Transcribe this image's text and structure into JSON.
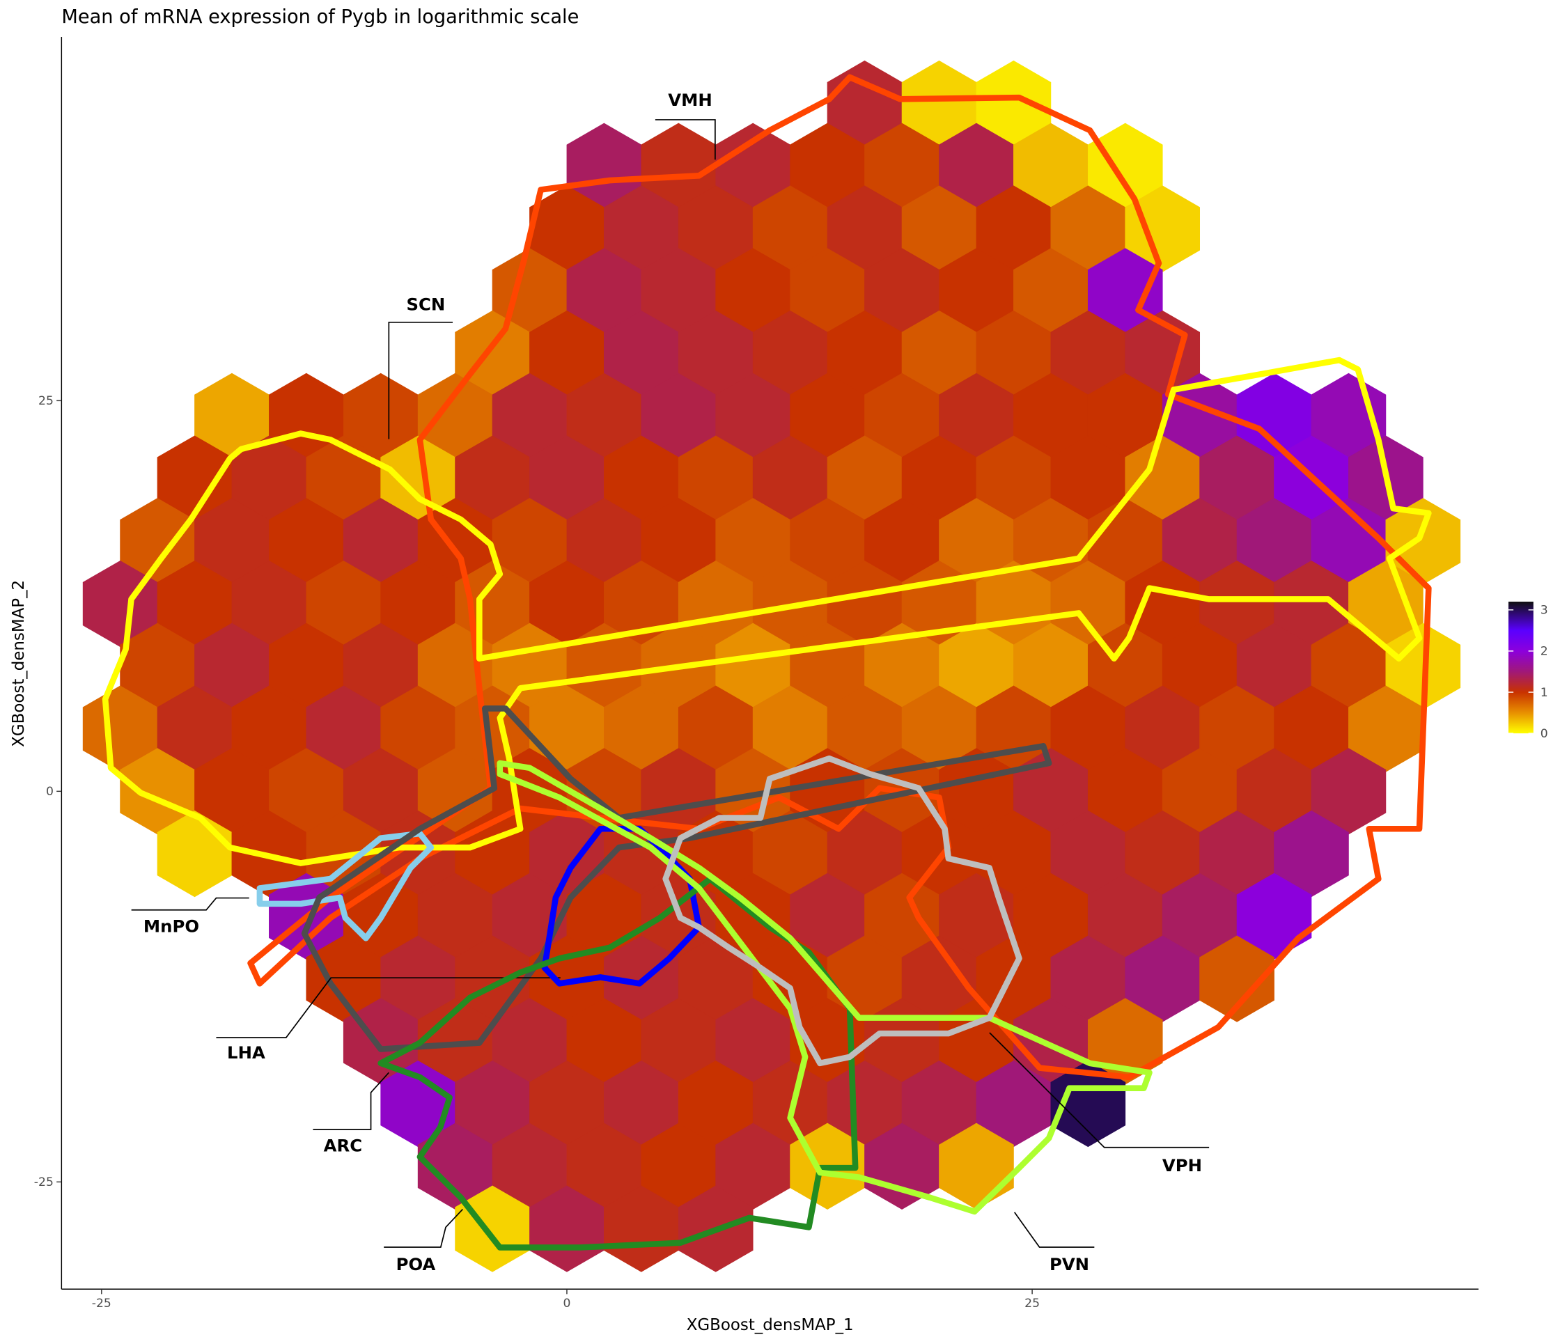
{
  "chart_data": {
    "type": "hexbin",
    "title": "Mean of mRNA expression of Pygb in logarithmic scale",
    "x_label": "XGBoost_densMAP_1",
    "y_label": "XGBoost_densMAP_2",
    "xlim": [
      -27.15,
      48.98
    ],
    "ylim": [
      -31.86,
      48.28
    ],
    "xticks": [
      -25,
      0,
      25
    ],
    "yticks": [
      -25,
      0,
      25
    ],
    "colorscale": {
      "values": [
        0,
        0.5,
        1,
        1.5,
        2,
        2.5,
        3.2
      ],
      "colors": [
        "#ffff00",
        "#e89000",
        "#c83200",
        "#a01878",
        "#8c00dc",
        "#5a00ff",
        "#101010"
      ],
      "lim": [
        0,
        3.2
      ],
      "ticks": [
        0,
        1,
        2,
        3
      ]
    },
    "rows": [
      {
        "y": 44,
        "x": [
          16,
          20,
          24
        ],
        "values": [
          1.2,
          0.2,
          0.1
        ]
      },
      {
        "y": 40,
        "x": [
          2,
          6,
          10,
          14,
          18,
          22,
          26,
          30
        ],
        "values": [
          1.4,
          1.1,
          1.2,
          1.0,
          0.9,
          1.3,
          0.3,
          0.1
        ]
      },
      {
        "y": 36,
        "x": [
          0,
          4,
          8,
          12,
          16,
          20,
          24,
          28,
          32
        ],
        "values": [
          1.0,
          1.2,
          1.1,
          0.9,
          1.1,
          0.8,
          1.0,
          0.7,
          0.2
        ]
      },
      {
        "y": 32,
        "x": [
          -2,
          2,
          6,
          10,
          14,
          18,
          22,
          26,
          30
        ],
        "values": [
          0.8,
          1.3,
          1.2,
          1.0,
          0.9,
          1.1,
          1.0,
          0.8,
          1.9
        ]
      },
      {
        "y": 28,
        "x": [
          -4,
          0,
          4,
          8,
          12,
          16,
          20,
          24,
          28,
          32
        ],
        "values": [
          0.6,
          1.0,
          1.3,
          1.2,
          1.1,
          1.0,
          0.8,
          0.9,
          1.1,
          1.2
        ]
      },
      {
        "y": 24,
        "x": [
          -18,
          -14,
          -10,
          -6,
          -2,
          2,
          6,
          10,
          14,
          18,
          22,
          26,
          30,
          34,
          38,
          42
        ],
        "values": [
          0.4,
          1.0,
          0.9,
          0.7,
          1.2,
          1.1,
          1.3,
          1.2,
          1.0,
          0.9,
          1.1,
          1.0,
          1.0,
          1.7,
          2.1,
          1.8
        ]
      },
      {
        "y": 20,
        "x": [
          -20,
          -16,
          -12,
          -8,
          -4,
          0,
          4,
          8,
          12,
          16,
          20,
          24,
          28,
          32,
          36,
          40,
          44
        ],
        "values": [
          1.0,
          1.1,
          0.9,
          0.3,
          1.1,
          1.2,
          1.0,
          0.9,
          1.1,
          0.8,
          1.0,
          0.9,
          1.0,
          0.6,
          1.4,
          2.0,
          1.6
        ]
      },
      {
        "y": 16,
        "x": [
          -22,
          -18,
          -14,
          -10,
          -6,
          -2,
          2,
          6,
          10,
          14,
          18,
          22,
          26,
          30,
          34,
          38,
          42,
          46
        ],
        "values": [
          0.8,
          1.1,
          1.0,
          1.2,
          1.0,
          0.9,
          1.1,
          1.0,
          0.8,
          0.9,
          1.0,
          0.7,
          0.8,
          0.9,
          1.3,
          1.5,
          1.8,
          0.3
        ]
      },
      {
        "y": 12,
        "x": [
          -24,
          -20,
          -16,
          -12,
          -8,
          -4,
          0,
          4,
          8,
          12,
          16,
          20,
          24,
          28,
          32,
          36,
          40,
          44
        ],
        "values": [
          1.3,
          1.0,
          1.1,
          0.9,
          1.0,
          0.8,
          1.0,
          0.9,
          0.7,
          0.8,
          0.9,
          0.8,
          0.6,
          0.7,
          1.0,
          1.1,
          1.2,
          0.4
        ]
      },
      {
        "y": 8,
        "x": [
          -22,
          -18,
          -14,
          -10,
          -6,
          -2,
          2,
          6,
          10,
          14,
          18,
          22,
          26,
          30,
          34,
          38,
          42,
          46
        ],
        "values": [
          0.9,
          1.2,
          1.0,
          1.1,
          0.7,
          0.6,
          0.8,
          0.7,
          0.5,
          0.8,
          0.6,
          0.4,
          0.5,
          0.9,
          1.0,
          1.2,
          0.9,
          0.2
        ]
      },
      {
        "y": 4,
        "x": [
          -24,
          -20,
          -16,
          -12,
          -8,
          -4,
          0,
          4,
          8,
          12,
          16,
          20,
          24,
          28,
          32,
          36,
          40,
          44
        ],
        "values": [
          0.7,
          1.1,
          1.0,
          1.2,
          0.9,
          0.8,
          0.6,
          0.7,
          0.9,
          0.6,
          0.8,
          0.7,
          0.9,
          1.0,
          1.1,
          0.9,
          1.0,
          0.6
        ]
      },
      {
        "y": 0,
        "x": [
          -22,
          -18,
          -14,
          -10,
          -6,
          -2,
          2,
          6,
          10,
          14,
          18,
          22,
          26,
          30,
          34,
          38,
          42
        ],
        "values": [
          0.5,
          1.0,
          0.9,
          1.1,
          0.8,
          1.0,
          0.9,
          1.1,
          0.8,
          1.0,
          0.9,
          1.0,
          1.2,
          1.0,
          0.9,
          1.1,
          1.3
        ]
      },
      {
        "y": -4,
        "x": [
          -20,
          -16,
          -12,
          -8,
          -4,
          0,
          4,
          8,
          12,
          16,
          20,
          24,
          28,
          32,
          36,
          40
        ],
        "values": [
          0.2,
          1.0,
          0.9,
          1.1,
          1.0,
          1.2,
          1.1,
          1.0,
          0.9,
          1.1,
          1.0,
          1.0,
          1.2,
          1.1,
          1.3,
          1.6
        ]
      },
      {
        "y": -8,
        "x": [
          -14,
          -10,
          -6,
          -2,
          2,
          6,
          10,
          14,
          18,
          22,
          26,
          30,
          34,
          38
        ],
        "values": [
          1.8,
          1.0,
          1.1,
          1.2,
          1.0,
          1.1,
          1.0,
          1.2,
          0.9,
          1.1,
          1.0,
          1.2,
          1.4,
          2.0
        ]
      },
      {
        "y": -12,
        "x": [
          -12,
          -8,
          -4,
          0,
          4,
          8,
          12,
          16,
          20,
          24,
          28,
          32,
          36
        ],
        "values": [
          1.0,
          1.2,
          1.1,
          1.0,
          1.2,
          1.1,
          1.0,
          0.9,
          1.1,
          1.0,
          1.3,
          1.5,
          0.8
        ]
      },
      {
        "y": -16,
        "x": [
          -10,
          -6,
          -2,
          2,
          6,
          10,
          14,
          18,
          22,
          26,
          30
        ],
        "values": [
          1.3,
          1.1,
          1.2,
          1.0,
          1.1,
          1.2,
          1.0,
          1.1,
          1.0,
          1.3,
          0.7
        ]
      },
      {
        "y": -20,
        "x": [
          -8,
          -4,
          0,
          4,
          8,
          12,
          16,
          20,
          24,
          28
        ],
        "values": [
          1.9,
          1.3,
          1.1,
          1.2,
          1.0,
          1.1,
          1.2,
          1.3,
          1.5,
          3.0
        ]
      },
      {
        "y": -24,
        "x": [
          -6,
          -2,
          2,
          6,
          10,
          14,
          18,
          22
        ],
        "values": [
          1.4,
          1.2,
          1.1,
          1.0,
          1.2,
          0.3,
          1.4,
          0.4
        ]
      },
      {
        "y": -28,
        "x": [
          -4,
          0,
          4,
          8
        ],
        "values": [
          0.2,
          1.3,
          1.1,
          1.2
        ]
      }
    ],
    "regions": [
      {
        "name": "VMH",
        "color": "#ff4500",
        "x": [
          -1.4,
          2.3,
          7.1,
          10.9,
          14.1,
          15.2,
          17.9,
          24.3,
          28.1,
          30.5,
          31.8,
          30.7,
          33.2,
          32.3,
          37.2,
          43.6,
          46.3,
          45.8,
          43.1,
          43.6,
          39.3,
          35.0,
          30.2,
          25.4,
          21.6,
          18.9,
          18.4,
          20.5,
          20.0,
          16.8,
          14.6,
          11.4,
          7.1,
          1.8,
          -2.5,
          -7.9,
          -12.7,
          -16.5,
          -17.0,
          -12.7,
          -4.1,
          -4.7,
          -5.2,
          -5.7,
          -7.3,
          -7.9,
          -5.2,
          -3.3,
          -2.3
        ],
        "y": [
          38.5,
          39.1,
          39.4,
          42.3,
          44.3,
          45.7,
          44.3,
          44.4,
          42.3,
          37.9,
          33.8,
          30.8,
          29.2,
          25.4,
          23.2,
          16.2,
          13.0,
          -2.4,
          -2.4,
          -5.6,
          -9.4,
          -15.1,
          -18.3,
          -17.7,
          -12.6,
          -8.1,
          -6.8,
          -3.6,
          -0.4,
          0.2,
          -2.4,
          -0.4,
          -2.4,
          -1.7,
          -1.1,
          -4.3,
          -8.1,
          -12.3,
          -11.0,
          -6.8,
          0.2,
          6.6,
          12.3,
          14.9,
          17.4,
          22.5,
          26.7,
          29.6,
          34.0
        ]
      },
      {
        "name": "SCN",
        "color": "#ffff00",
        "x": [
          -17.5,
          -14.3,
          -12.7,
          -9.5,
          -7.9,
          -5.7,
          -4.1,
          -3.6,
          -4.7,
          -4.7,
          27.5,
          31.3,
          32.6,
          41.5,
          42.5,
          43.6,
          44.4,
          46.3,
          45.8,
          44.2,
          45.8,
          44.7,
          40.9,
          34.5,
          31.3,
          30.2,
          29.4,
          27.5,
          -2.5,
          -3.6,
          -3.1,
          -2.5,
          -5.2,
          -9.0,
          -14.3,
          -18.1,
          -19.7,
          -22.9,
          -24.5,
          -24.8,
          -23.7,
          -23.4,
          -21.8,
          -20.2,
          -18.1
        ],
        "y": [
          21.9,
          22.9,
          22.5,
          20.6,
          18.7,
          17.4,
          15.8,
          13.9,
          12.3,
          8.5,
          14.9,
          20.6,
          25.7,
          27.6,
          27.0,
          22.5,
          18.1,
          17.8,
          16.2,
          14.9,
          9.8,
          8.5,
          12.3,
          12.3,
          13.0,
          9.8,
          8.5,
          11.4,
          6.6,
          4.7,
          2.1,
          -2.4,
          -3.6,
          -3.6,
          -4.6,
          -3.6,
          -1.7,
          -0.1,
          1.5,
          5.9,
          9.1,
          12.3,
          14.9,
          17.4,
          21.3
        ]
      },
      {
        "name": "MnPO",
        "color": "#87ceeb",
        "x": [
          -16.5,
          -12.7,
          -10.0,
          -7.9,
          -7.3,
          -8.4,
          -10.0,
          -10.8,
          -11.9,
          -12.2,
          -14.3,
          -16.5
        ],
        "y": [
          -6.2,
          -5.6,
          -3.0,
          -2.7,
          -3.6,
          -4.9,
          -8.1,
          -9.4,
          -8.1,
          -6.8,
          -7.2,
          -7.2
        ]
      },
      {
        "name": "LHA",
        "color": "#4d4d4d",
        "x": [
          -4.4,
          -3.9,
          -7.9,
          -13.3,
          -14.1,
          -12.7,
          -10.0,
          -4.7,
          -1.4,
          0.2,
          2.8,
          6.6,
          25.9,
          25.6,
          2.8,
          0.2,
          -3.3
        ],
        "y": [
          5.3,
          0.2,
          -2.4,
          -6.8,
          -9.1,
          -12.3,
          -16.5,
          -16.1,
          -10.7,
          -6.8,
          -3.6,
          -3.0,
          1.8,
          2.9,
          -1.7,
          0.8,
          5.3
        ]
      },
      {
        "name": "ARC",
        "color": "#0000ff",
        "x": [
          0.2,
          1.8,
          3.9,
          5.0,
          6.6,
          7.1,
          5.5,
          3.9,
          1.8,
          -0.4,
          -1.2,
          -0.6
        ],
        "y": [
          -4.9,
          -2.4,
          -2.4,
          -3.6,
          -5.6,
          -8.7,
          -10.7,
          -12.3,
          -11.9,
          -12.3,
          -11.3,
          -6.8
        ]
      },
      {
        "name": "POA",
        "color": "#228b22",
        "x": [
          -10.0,
          -7.9,
          -5.2,
          -2.5,
          -0.4,
          2.3,
          5.0,
          7.7,
          10.9,
          13.0,
          15.2,
          15.5,
          13.6,
          13.0,
          9.8,
          6.1,
          0.7,
          -3.6,
          -5.7,
          -7.9,
          -6.8,
          -6.3,
          -7.9
        ],
        "y": [
          -17.4,
          -16.1,
          -13.2,
          -11.6,
          -10.7,
          -10.0,
          -8.1,
          -5.6,
          -8.7,
          -10.3,
          -13.9,
          -24.1,
          -24.1,
          -27.9,
          -27.3,
          -28.9,
          -29.2,
          -29.2,
          -26.0,
          -23.4,
          -21.5,
          -19.6,
          -18.3
        ]
      },
      {
        "name": "PVN",
        "color": "#adff2f",
        "x": [
          -3.6,
          -2.0,
          1.8,
          4.5,
          7.1,
          9.3,
          12.0,
          15.7,
          22.7,
          28.1,
          31.3,
          31.0,
          27.0,
          25.9,
          24.3,
          21.9,
          19.5,
          15.7,
          13.6,
          12.0,
          12.8,
          12.0,
          7.1,
          4.5,
          -0.4,
          -3.6
        ],
        "y": [
          1.8,
          1.5,
          -1.1,
          -3.0,
          -4.9,
          -6.8,
          -9.4,
          -14.5,
          -14.5,
          -17.4,
          -18.0,
          -19.0,
          -19.0,
          -22.2,
          -24.1,
          -26.9,
          -26.0,
          -24.7,
          -24.4,
          -20.9,
          -17.0,
          -13.9,
          -6.2,
          -3.6,
          -0.4,
          1.1
        ]
      },
      {
        "name": "VPH",
        "color": "#bebebe",
        "x": [
          10.9,
          14.1,
          16.3,
          18.9,
          20.3,
          20.5,
          22.7,
          23.2,
          24.3,
          22.7,
          20.5,
          16.8,
          15.2,
          13.6,
          12.5,
          12.0,
          10.4,
          8.7,
          7.1,
          6.1,
          5.3,
          6.1,
          8.2,
          10.4
        ],
        "y": [
          0.8,
          2.1,
          1.1,
          0.2,
          -2.4,
          -4.3,
          -4.9,
          -6.8,
          -10.7,
          -14.5,
          -15.5,
          -15.5,
          -17.0,
          -17.4,
          -15.1,
          -12.6,
          -11.3,
          -10.0,
          -8.7,
          -8.1,
          -5.6,
          -3.0,
          -1.7,
          -1.7
        ]
      }
    ]
  }
}
